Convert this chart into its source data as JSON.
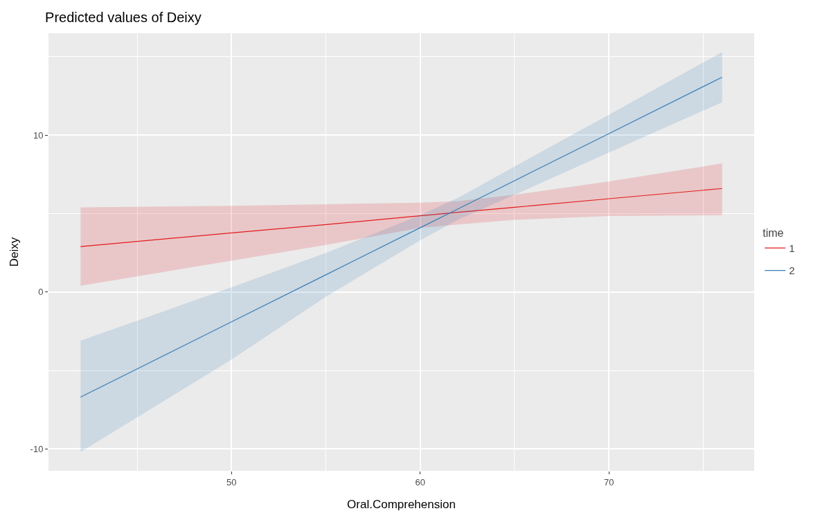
{
  "chart_data": {
    "type": "line",
    "title": "Predicted values of Deixy",
    "xlabel": "Oral.Comprehension",
    "ylabel": "Deixy",
    "legend_title": "time",
    "x": [
      42,
      50,
      55,
      60,
      62,
      65,
      70,
      76
    ],
    "series": [
      {
        "name": "1",
        "color": "#e41a1c",
        "values": [
          2.9,
          3.77,
          4.3,
          4.86,
          5.08,
          5.4,
          5.95,
          6.6
        ],
        "lower": [
          0.4,
          2.0,
          3.0,
          4.1,
          4.3,
          4.6,
          4.85,
          4.9
        ],
        "upper": [
          5.4,
          5.5,
          5.6,
          5.7,
          5.8,
          6.2,
          7.05,
          8.2
        ]
      },
      {
        "name": "2",
        "color": "#377eb8",
        "values": [
          -6.7,
          -1.9,
          1.1,
          4.1,
          5.3,
          7.1,
          10.1,
          13.7
        ],
        "lower": [
          -10.2,
          -4.3,
          -0.3,
          3.3,
          4.6,
          6.2,
          8.9,
          12.1
        ],
        "upper": [
          -3.1,
          0.3,
          2.5,
          4.9,
          6.0,
          8.0,
          11.3,
          15.3
        ]
      }
    ],
    "xlim": [
      40.3,
      77.7
    ],
    "xticks": [
      {
        "value": 45,
        "label": null
      },
      50,
      {
        "value": 55,
        "label": null
      },
      60,
      {
        "value": 65,
        "label": null
      },
      70,
      {
        "value": 75,
        "label": null
      }
    ],
    "ylim": [
      -11.4,
      16.5
    ],
    "yticks": [
      {
        "value": -10,
        "label": "-10"
      },
      {
        "value": -5,
        "label": null
      },
      0,
      {
        "value": 5,
        "label": null
      },
      10,
      {
        "value": 15,
        "label": null
      }
    ],
    "grid": true,
    "legend": "right",
    "line_style": "solid",
    "marker": "none"
  }
}
